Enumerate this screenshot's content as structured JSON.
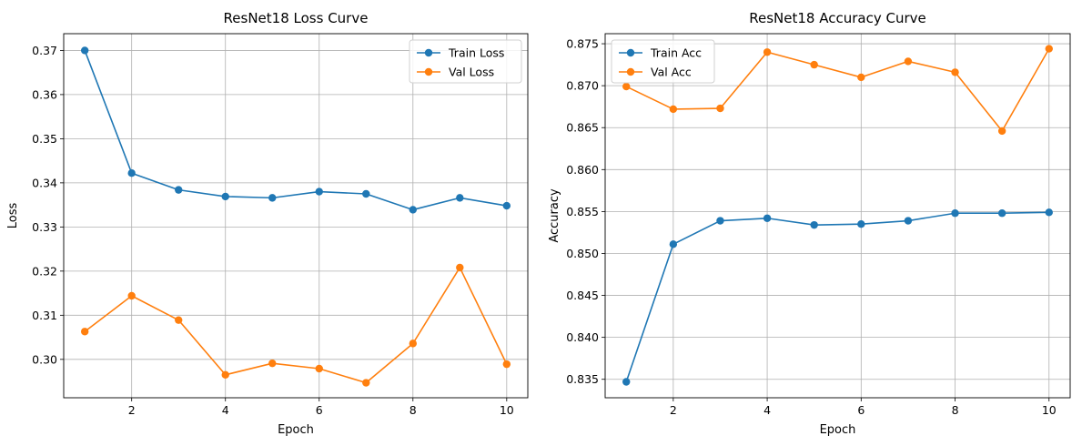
{
  "chart_data": [
    {
      "type": "line",
      "title": "ResNet18 Loss Curve",
      "xlabel": "Epoch",
      "ylabel": "Loss",
      "x": [
        1,
        2,
        3,
        4,
        5,
        6,
        7,
        8,
        9,
        10
      ],
      "xlim": [
        0.55,
        10.45
      ],
      "ylim": [
        0.2913,
        0.3738
      ],
      "xticks": [
        2,
        4,
        6,
        8,
        10
      ],
      "yticks": [
        0.3,
        0.31,
        0.32,
        0.33,
        0.34,
        0.35,
        0.36,
        0.37
      ],
      "ytick_labels": [
        "0.30",
        "0.31",
        "0.32",
        "0.33",
        "0.34",
        "0.35",
        "0.36",
        "0.37"
      ],
      "grid": true,
      "legend_position": "top-right",
      "series": [
        {
          "name": "Train Loss",
          "color": "#1f77b4",
          "marker": "circle",
          "values": [
            0.37,
            0.3422,
            0.3384,
            0.3369,
            0.3366,
            0.338,
            0.3375,
            0.3339,
            0.3366,
            0.3348
          ]
        },
        {
          "name": "Val Loss",
          "color": "#ff7f0e",
          "marker": "circle",
          "values": [
            0.3063,
            0.3144,
            0.3089,
            0.2965,
            0.2991,
            0.2979,
            0.2947,
            0.3036,
            0.3208,
            0.2989
          ]
        }
      ]
    },
    {
      "type": "line",
      "title": "ResNet18 Accuracy Curve",
      "xlabel": "Epoch",
      "ylabel": "Accuracy",
      "x": [
        1,
        2,
        3,
        4,
        5,
        6,
        7,
        8,
        9,
        10
      ],
      "xlim": [
        0.55,
        10.45
      ],
      "ylim": [
        0.8328,
        0.8762
      ],
      "xticks": [
        2,
        4,
        6,
        8,
        10
      ],
      "yticks": [
        0.835,
        0.84,
        0.845,
        0.85,
        0.855,
        0.86,
        0.865,
        0.87,
        0.875
      ],
      "ytick_labels": [
        "0.835",
        "0.840",
        "0.845",
        "0.850",
        "0.855",
        "0.860",
        "0.865",
        "0.870",
        "0.875"
      ],
      "grid": true,
      "legend_position": "top-left",
      "series": [
        {
          "name": "Train Acc",
          "color": "#1f77b4",
          "marker": "circle",
          "values": [
            0.8347,
            0.8511,
            0.8539,
            0.8542,
            0.8534,
            0.8535,
            0.8539,
            0.8548,
            0.8548,
            0.8549
          ]
        },
        {
          "name": "Val Acc",
          "color": "#ff7f0e",
          "marker": "circle",
          "values": [
            0.8699,
            0.8672,
            0.8673,
            0.874,
            0.8725,
            0.871,
            0.8729,
            0.8716,
            0.8646,
            0.8744
          ]
        }
      ]
    }
  ]
}
